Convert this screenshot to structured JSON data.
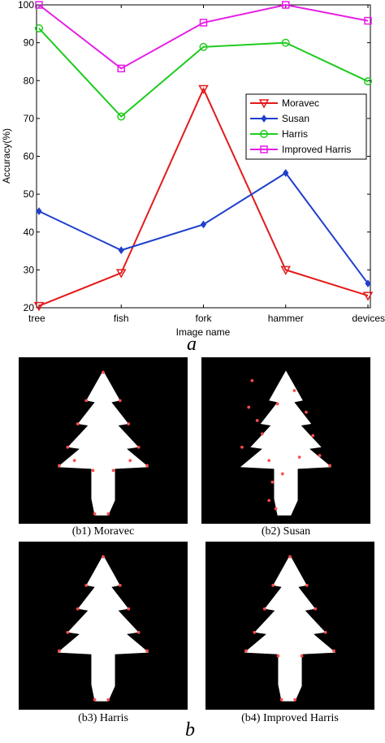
{
  "chart_data": {
    "type": "line",
    "categories": [
      "tree",
      "fish",
      "fork",
      "hammer",
      "devices"
    ],
    "xlabel": "Image name",
    "ylabel": "Accuracy(%)",
    "ylim": [
      20,
      100
    ],
    "yticks": [
      20,
      30,
      40,
      50,
      60,
      70,
      80,
      90,
      100
    ],
    "grid": false,
    "legend_position": "right",
    "series": [
      {
        "name": "Moravec",
        "color": "#e41a1a",
        "marker": "triangle-down",
        "values": [
          20.5,
          29.2,
          77.8,
          30.0,
          23.2
        ]
      },
      {
        "name": "Susan",
        "color": "#1f3fcc",
        "marker": "diamond",
        "values": [
          45.5,
          35.2,
          42.0,
          55.6,
          26.4
        ]
      },
      {
        "name": "Harris",
        "color": "#1fcc1f",
        "marker": "circle",
        "values": [
          93.8,
          70.5,
          88.9,
          90.0,
          79.8
        ]
      },
      {
        "name": "Improved Harris",
        "color": "#e61ee6",
        "marker": "square",
        "values": [
          100,
          83.2,
          95.3,
          100,
          95.8
        ]
      }
    ]
  },
  "figure": {
    "label_a": "a",
    "label_b": "b",
    "panels": [
      {
        "caption": "(b1) Moravec"
      },
      {
        "caption": "(b2) Susan"
      },
      {
        "caption": "(b3) Harris"
      },
      {
        "caption": "(b4) Improved Harris"
      }
    ]
  }
}
